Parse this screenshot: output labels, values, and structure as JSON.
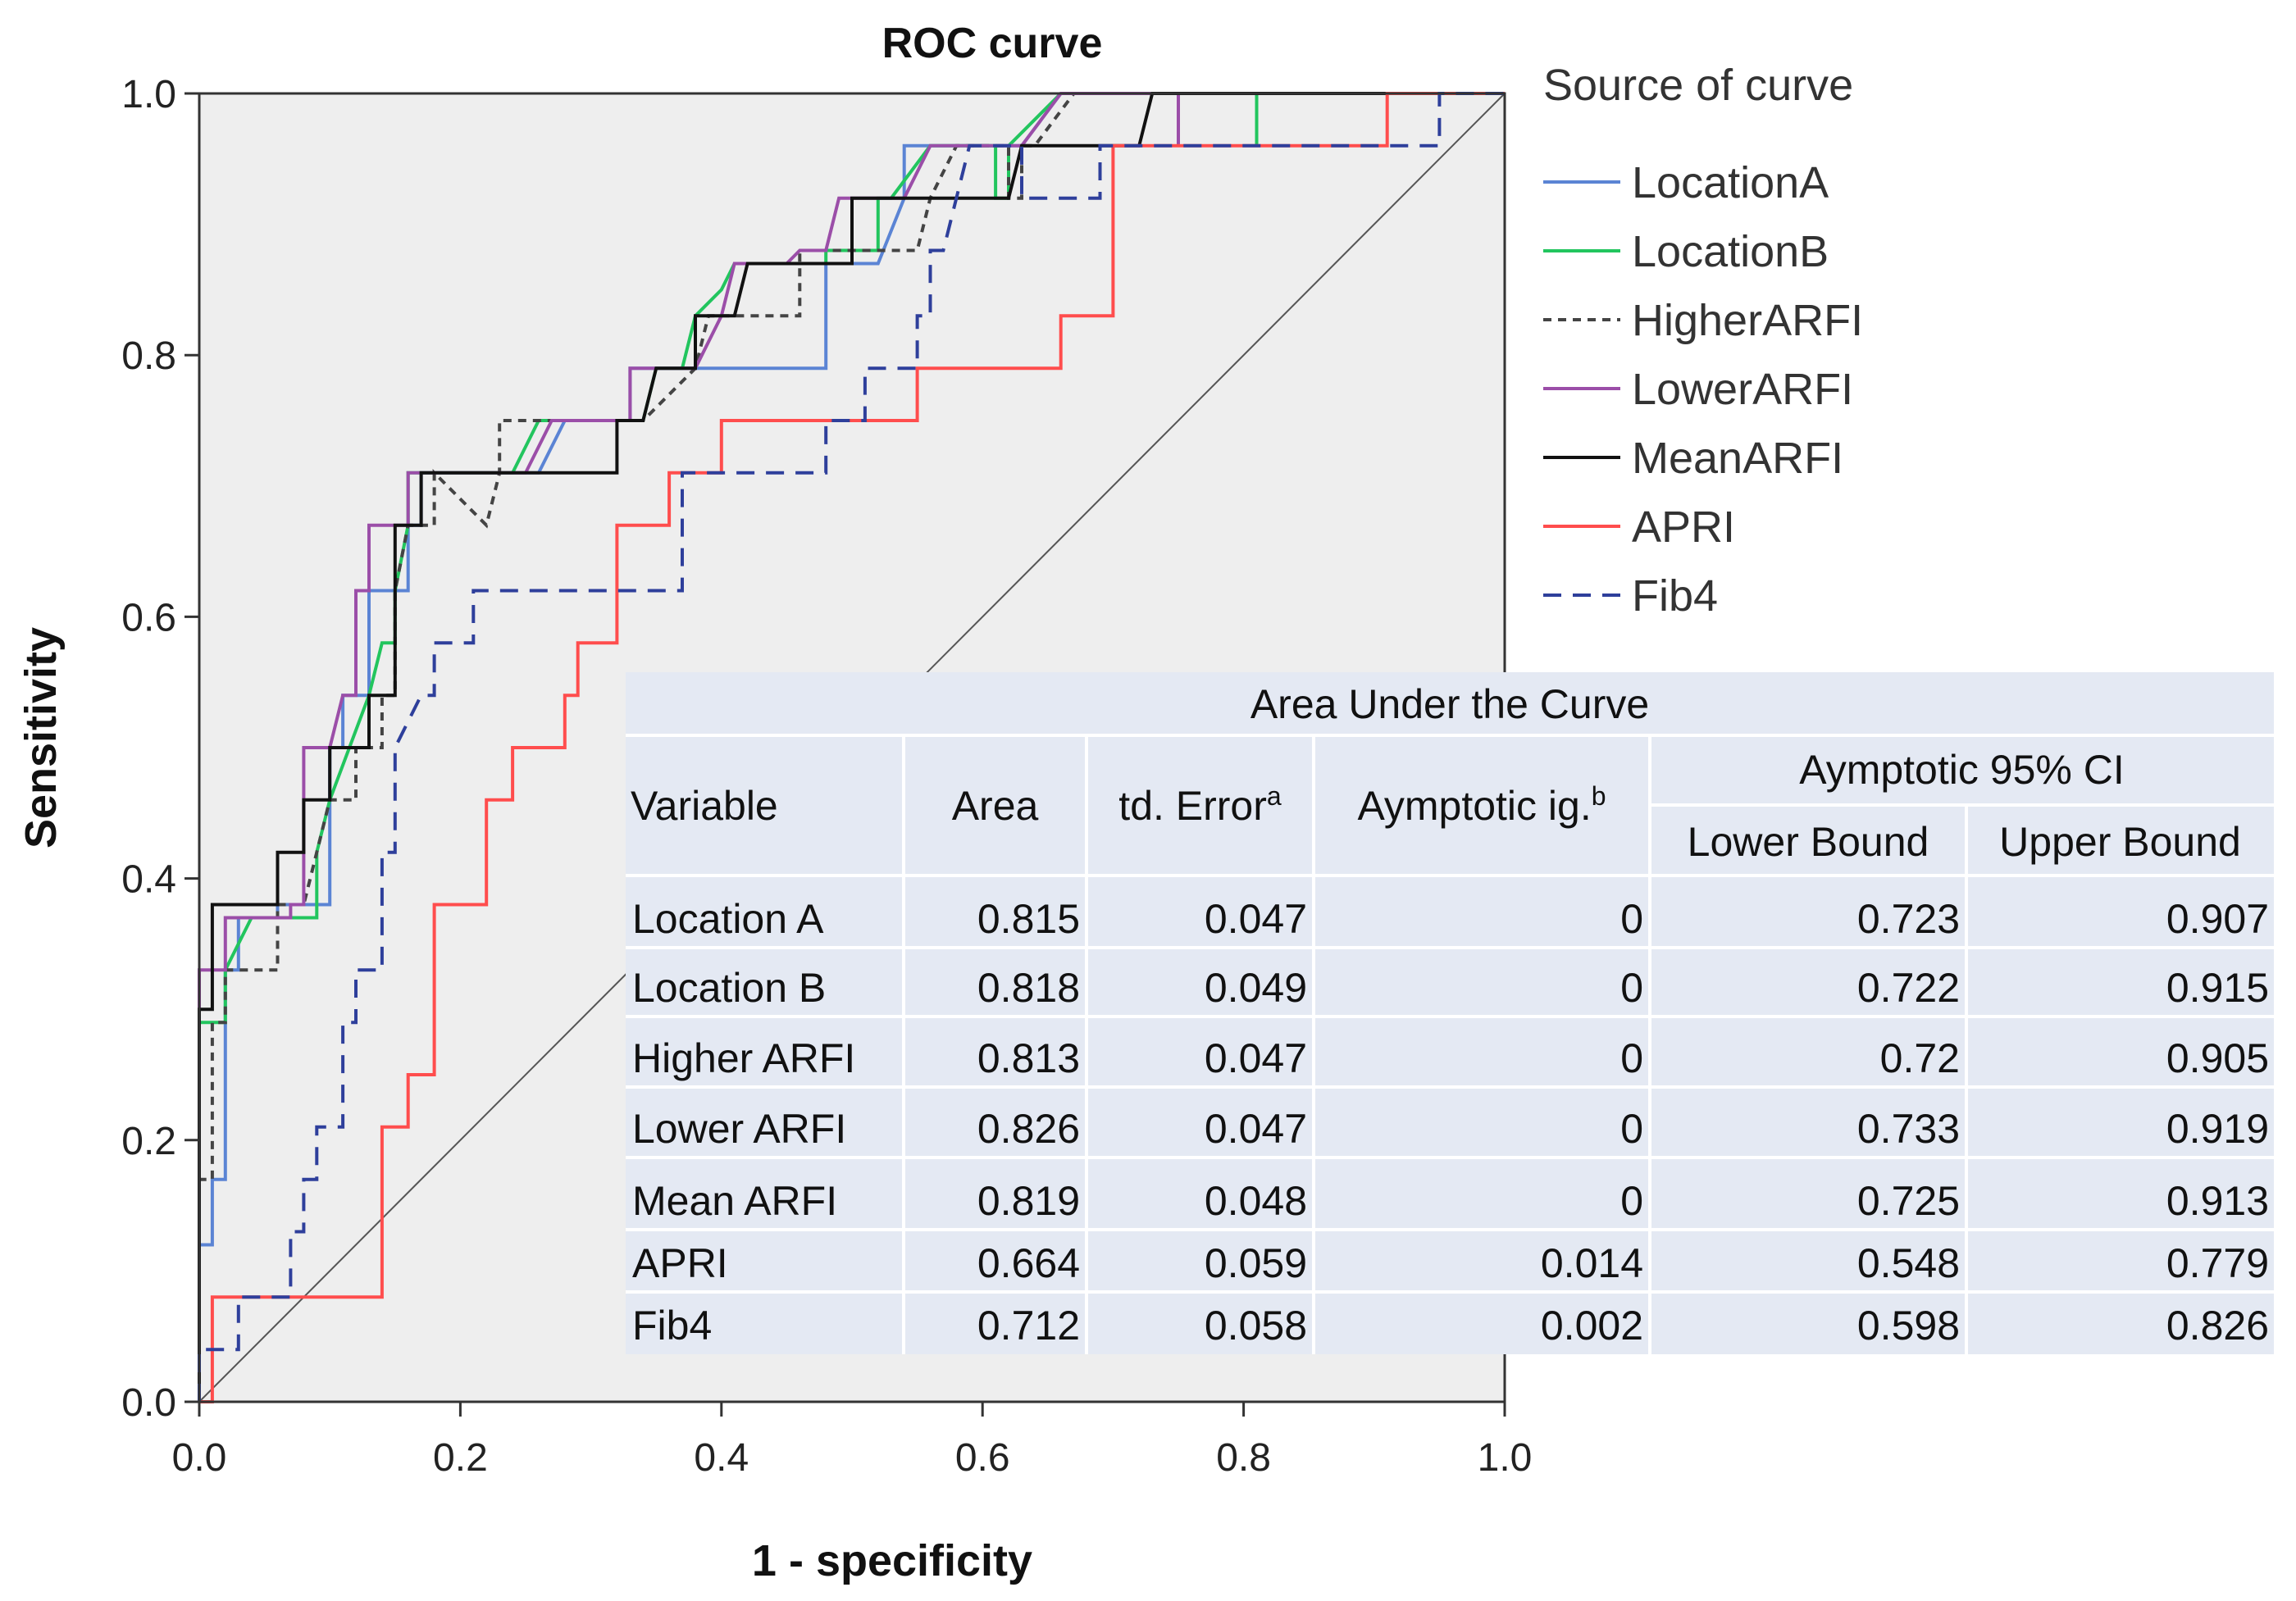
{
  "chart_data": {
    "type": "line",
    "title": "ROC curve",
    "xlabel": "1 - specificity",
    "ylabel": "Sensitivity",
    "xlim": [
      0,
      1
    ],
    "ylim": [
      0,
      1
    ],
    "x_ticks": [
      "0.0",
      "0.2",
      "0.4",
      "0.6",
      "0.8",
      "1.0"
    ],
    "y_ticks": [
      "0.0",
      "0.2",
      "0.4",
      "0.6",
      "0.8",
      "1.0"
    ],
    "grid": false,
    "legend": {
      "title": "Source of curve",
      "position": "right"
    },
    "series": [
      {
        "name": "LocationA",
        "color": "#5b84d4",
        "dash": "solid",
        "points": [
          [
            0,
            0
          ],
          [
            0,
            0.12
          ],
          [
            0.01,
            0.12
          ],
          [
            0.01,
            0.17
          ],
          [
            0.02,
            0.17
          ],
          [
            0.02,
            0.33
          ],
          [
            0.03,
            0.33
          ],
          [
            0.03,
            0.37
          ],
          [
            0.06,
            0.37
          ],
          [
            0.06,
            0.38
          ],
          [
            0.1,
            0.38
          ],
          [
            0.1,
            0.5
          ],
          [
            0.11,
            0.5
          ],
          [
            0.11,
            0.54
          ],
          [
            0.13,
            0.54
          ],
          [
            0.13,
            0.62
          ],
          [
            0.16,
            0.62
          ],
          [
            0.16,
            0.67
          ],
          [
            0.17,
            0.67
          ],
          [
            0.17,
            0.71
          ],
          [
            0.23,
            0.71
          ],
          [
            0.26,
            0.71
          ],
          [
            0.28,
            0.75
          ],
          [
            0.33,
            0.75
          ],
          [
            0.33,
            0.79
          ],
          [
            0.4,
            0.79
          ],
          [
            0.48,
            0.79
          ],
          [
            0.48,
            0.87
          ],
          [
            0.52,
            0.87
          ],
          [
            0.54,
            0.92
          ],
          [
            0.54,
            0.96
          ],
          [
            0.62,
            0.96
          ],
          [
            0.63,
            0.96
          ],
          [
            0.66,
            1
          ],
          [
            1,
            1
          ]
        ]
      },
      {
        "name": "LocationB",
        "color": "#22c55e",
        "dash": "solid",
        "points": [
          [
            0,
            0
          ],
          [
            0,
            0.29
          ],
          [
            0.02,
            0.29
          ],
          [
            0.02,
            0.33
          ],
          [
            0.04,
            0.37
          ],
          [
            0.09,
            0.37
          ],
          [
            0.09,
            0.42
          ],
          [
            0.1,
            0.46
          ],
          [
            0.13,
            0.54
          ],
          [
            0.14,
            0.58
          ],
          [
            0.15,
            0.58
          ],
          [
            0.15,
            0.62
          ],
          [
            0.16,
            0.67
          ],
          [
            0.16,
            0.71
          ],
          [
            0.18,
            0.71
          ],
          [
            0.24,
            0.71
          ],
          [
            0.26,
            0.75
          ],
          [
            0.33,
            0.75
          ],
          [
            0.34,
            0.75
          ],
          [
            0.35,
            0.79
          ],
          [
            0.37,
            0.79
          ],
          [
            0.38,
            0.83
          ],
          [
            0.4,
            0.85
          ],
          [
            0.41,
            0.87
          ],
          [
            0.48,
            0.87
          ],
          [
            0.48,
            0.88
          ],
          [
            0.52,
            0.88
          ],
          [
            0.52,
            0.92
          ],
          [
            0.53,
            0.92
          ],
          [
            0.56,
            0.96
          ],
          [
            0.61,
            0.96
          ],
          [
            0.61,
            0.92
          ],
          [
            0.62,
            0.92
          ],
          [
            0.62,
            0.96
          ],
          [
            0.66,
            1
          ],
          [
            0.81,
            1
          ],
          [
            0.81,
            0.96
          ],
          [
            0.81,
            1
          ],
          [
            1,
            1
          ]
        ]
      },
      {
        "name": "HigherARFI",
        "color": "#444444",
        "dash": "dot",
        "points": [
          [
            0,
            0
          ],
          [
            0,
            0.17
          ],
          [
            0.01,
            0.17
          ],
          [
            0.01,
            0.29
          ],
          [
            0.02,
            0.29
          ],
          [
            0.02,
            0.33
          ],
          [
            0.06,
            0.33
          ],
          [
            0.06,
            0.38
          ],
          [
            0.08,
            0.38
          ],
          [
            0.09,
            0.42
          ],
          [
            0.1,
            0.46
          ],
          [
            0.12,
            0.46
          ],
          [
            0.12,
            0.5
          ],
          [
            0.14,
            0.5
          ],
          [
            0.14,
            0.54
          ],
          [
            0.15,
            0.54
          ],
          [
            0.15,
            0.62
          ],
          [
            0.16,
            0.67
          ],
          [
            0.18,
            0.67
          ],
          [
            0.18,
            0.71
          ],
          [
            0.22,
            0.67
          ],
          [
            0.23,
            0.71
          ],
          [
            0.23,
            0.75
          ],
          [
            0.33,
            0.75
          ],
          [
            0.34,
            0.75
          ],
          [
            0.38,
            0.79
          ],
          [
            0.39,
            0.83
          ],
          [
            0.44,
            0.83
          ],
          [
            0.46,
            0.83
          ],
          [
            0.46,
            0.88
          ],
          [
            0.48,
            0.88
          ],
          [
            0.53,
            0.88
          ],
          [
            0.55,
            0.88
          ],
          [
            0.56,
            0.92
          ],
          [
            0.58,
            0.96
          ],
          [
            0.62,
            0.96
          ],
          [
            0.62,
            0.92
          ],
          [
            0.63,
            0.92
          ],
          [
            0.63,
            0.96
          ],
          [
            0.64,
            0.96
          ],
          [
            0.67,
            1
          ],
          [
            1,
            1
          ]
        ]
      },
      {
        "name": "LowerARFI",
        "color": "#9b4ea8",
        "dash": "solid",
        "points": [
          [
            0,
            0
          ],
          [
            0,
            0.33
          ],
          [
            0.02,
            0.33
          ],
          [
            0.02,
            0.37
          ],
          [
            0.07,
            0.37
          ],
          [
            0.07,
            0.38
          ],
          [
            0.08,
            0.38
          ],
          [
            0.08,
            0.5
          ],
          [
            0.1,
            0.5
          ],
          [
            0.11,
            0.54
          ],
          [
            0.12,
            0.54
          ],
          [
            0.12,
            0.62
          ],
          [
            0.13,
            0.62
          ],
          [
            0.13,
            0.67
          ],
          [
            0.16,
            0.67
          ],
          [
            0.16,
            0.71
          ],
          [
            0.23,
            0.71
          ],
          [
            0.25,
            0.71
          ],
          [
            0.27,
            0.75
          ],
          [
            0.33,
            0.75
          ],
          [
            0.33,
            0.79
          ],
          [
            0.36,
            0.79
          ],
          [
            0.38,
            0.79
          ],
          [
            0.4,
            0.83
          ],
          [
            0.41,
            0.87
          ],
          [
            0.45,
            0.87
          ],
          [
            0.46,
            0.88
          ],
          [
            0.48,
            0.88
          ],
          [
            0.49,
            0.92
          ],
          [
            0.53,
            0.92
          ],
          [
            0.54,
            0.92
          ],
          [
            0.56,
            0.96
          ],
          [
            0.63,
            0.96
          ],
          [
            0.66,
            1
          ],
          [
            0.75,
            1
          ],
          [
            0.75,
            0.96
          ],
          [
            0.75,
            1
          ],
          [
            1,
            1
          ]
        ]
      },
      {
        "name": "MeanARFI",
        "color": "#111111",
        "dash": "solid",
        "points": [
          [
            0,
            0
          ],
          [
            0,
            0.3
          ],
          [
            0.01,
            0.3
          ],
          [
            0.01,
            0.38
          ],
          [
            0.06,
            0.38
          ],
          [
            0.06,
            0.42
          ],
          [
            0.08,
            0.42
          ],
          [
            0.08,
            0.46
          ],
          [
            0.1,
            0.46
          ],
          [
            0.1,
            0.5
          ],
          [
            0.13,
            0.5
          ],
          [
            0.13,
            0.54
          ],
          [
            0.14,
            0.54
          ],
          [
            0.15,
            0.54
          ],
          [
            0.15,
            0.67
          ],
          [
            0.17,
            0.67
          ],
          [
            0.17,
            0.71
          ],
          [
            0.32,
            0.71
          ],
          [
            0.32,
            0.75
          ],
          [
            0.34,
            0.75
          ],
          [
            0.35,
            0.79
          ],
          [
            0.38,
            0.79
          ],
          [
            0.38,
            0.83
          ],
          [
            0.41,
            0.83
          ],
          [
            0.42,
            0.87
          ],
          [
            0.48,
            0.87
          ],
          [
            0.5,
            0.87
          ],
          [
            0.5,
            0.92
          ],
          [
            0.56,
            0.92
          ],
          [
            0.62,
            0.92
          ],
          [
            0.63,
            0.96
          ],
          [
            0.7,
            0.96
          ],
          [
            0.72,
            0.96
          ],
          [
            0.73,
            1
          ],
          [
            1,
            1
          ]
        ]
      },
      {
        "name": "APRI",
        "color": "#ff4d4d",
        "dash": "solid",
        "points": [
          [
            0,
            0
          ],
          [
            0.01,
            0
          ],
          [
            0.01,
            0.08
          ],
          [
            0.14,
            0.08
          ],
          [
            0.14,
            0.21
          ],
          [
            0.16,
            0.21
          ],
          [
            0.16,
            0.25
          ],
          [
            0.18,
            0.25
          ],
          [
            0.18,
            0.38
          ],
          [
            0.22,
            0.38
          ],
          [
            0.22,
            0.46
          ],
          [
            0.24,
            0.46
          ],
          [
            0.24,
            0.5
          ],
          [
            0.28,
            0.5
          ],
          [
            0.28,
            0.54
          ],
          [
            0.29,
            0.54
          ],
          [
            0.29,
            0.58
          ],
          [
            0.32,
            0.58
          ],
          [
            0.32,
            0.62
          ],
          [
            0.32,
            0.67
          ],
          [
            0.36,
            0.67
          ],
          [
            0.36,
            0.71
          ],
          [
            0.4,
            0.71
          ],
          [
            0.4,
            0.75
          ],
          [
            0.48,
            0.75
          ],
          [
            0.55,
            0.75
          ],
          [
            0.55,
            0.79
          ],
          [
            0.57,
            0.79
          ],
          [
            0.57,
            0.79
          ],
          [
            0.65,
            0.79
          ],
          [
            0.65,
            0.79
          ],
          [
            0.66,
            0.79
          ],
          [
            0.66,
            0.83
          ],
          [
            0.68,
            0.83
          ],
          [
            0.7,
            0.83
          ],
          [
            0.7,
            0.96
          ],
          [
            0.91,
            0.96
          ],
          [
            0.91,
            1
          ],
          [
            1,
            1
          ]
        ]
      },
      {
        "name": "Fib4",
        "color": "#2e3f9b",
        "dash": "dash",
        "points": [
          [
            0,
            0
          ],
          [
            0,
            0.04
          ],
          [
            0.03,
            0.04
          ],
          [
            0.03,
            0.08
          ],
          [
            0.07,
            0.08
          ],
          [
            0.07,
            0.13
          ],
          [
            0.08,
            0.13
          ],
          [
            0.08,
            0.17
          ],
          [
            0.09,
            0.17
          ],
          [
            0.09,
            0.21
          ],
          [
            0.11,
            0.21
          ],
          [
            0.11,
            0.29
          ],
          [
            0.12,
            0.29
          ],
          [
            0.12,
            0.33
          ],
          [
            0.14,
            0.33
          ],
          [
            0.14,
            0.42
          ],
          [
            0.15,
            0.42
          ],
          [
            0.15,
            0.5
          ],
          [
            0.17,
            0.54
          ],
          [
            0.18,
            0.54
          ],
          [
            0.18,
            0.58
          ],
          [
            0.21,
            0.58
          ],
          [
            0.21,
            0.62
          ],
          [
            0.37,
            0.62
          ],
          [
            0.37,
            0.71
          ],
          [
            0.48,
            0.71
          ],
          [
            0.48,
            0.75
          ],
          [
            0.51,
            0.75
          ],
          [
            0.51,
            0.79
          ],
          [
            0.55,
            0.79
          ],
          [
            0.55,
            0.83
          ],
          [
            0.56,
            0.83
          ],
          [
            0.56,
            0.88
          ],
          [
            0.57,
            0.88
          ],
          [
            0.59,
            0.96
          ],
          [
            0.63,
            0.96
          ],
          [
            0.63,
            0.92
          ],
          [
            0.69,
            0.92
          ],
          [
            0.69,
            0.96
          ],
          [
            0.95,
            0.96
          ],
          [
            0.95,
            1
          ],
          [
            1,
            1
          ]
        ]
      }
    ],
    "table": {
      "title": "Area Under the Curve",
      "headers": {
        "variable": "Variable",
        "area": "Area",
        "std_error": "td. Error",
        "std_error_sup": "a",
        "sig": "Aymptotic ig.",
        "sig_sup": "b",
        "ci_group": "Aymptotic 95% CI",
        "lower": "Lower Bound",
        "upper": "Upper Bound"
      },
      "rows": [
        {
          "variable": "Location A",
          "area": "0.815",
          "std_error": "0.047",
          "sig": "0",
          "lower": "0.723",
          "upper": "0.907"
        },
        {
          "variable": "Location B",
          "area": "0.818",
          "std_error": "0.049",
          "sig": "0",
          "lower": "0.722",
          "upper": "0.915"
        },
        {
          "variable": "Higher ARFI",
          "area": "0.813",
          "std_error": "0.047",
          "sig": "0",
          "lower": "0.72",
          "upper": "0.905"
        },
        {
          "variable": "Lower ARFI",
          "area": "0.826",
          "std_error": "0.047",
          "sig": "0",
          "lower": "0.733",
          "upper": "0.919"
        },
        {
          "variable": "Mean ARFI",
          "area": "0.819",
          "std_error": "0.048",
          "sig": "0",
          "lower": "0.725",
          "upper": "0.913"
        },
        {
          "variable": "APRI",
          "area": "0.664",
          "std_error": "0.059",
          "sig": "0.014",
          "lower": "0.548",
          "upper": "0.779"
        },
        {
          "variable": "Fib4",
          "area": "0.712",
          "std_error": "0.058",
          "sig": "0.002",
          "lower": "0.598",
          "upper": "0.826"
        }
      ]
    },
    "colors": {
      "plot_background": "#eeeeee",
      "table_background": "#e4e9f3",
      "diagonal": "#555555"
    }
  }
}
